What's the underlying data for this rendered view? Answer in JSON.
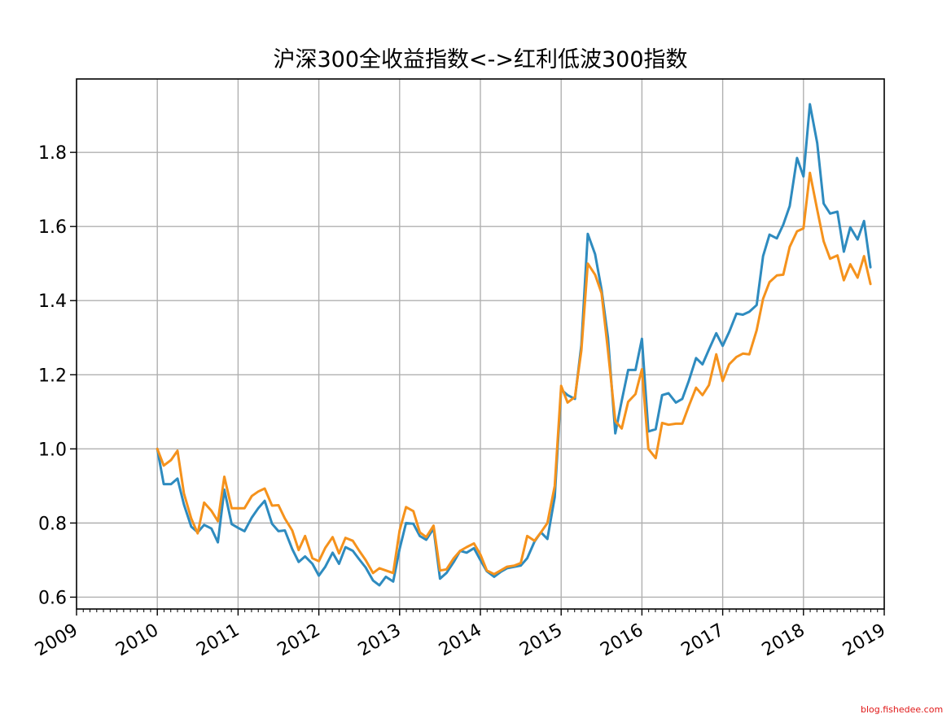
{
  "chart_data": {
    "type": "line",
    "title": "沪深300全收益指数<->红利低波300指数",
    "xlabel": "",
    "ylabel": "",
    "xlim": [
      2009.0,
      2019.0
    ],
    "ylim": [
      0.568,
      1.998
    ],
    "x_ticks": [
      2009,
      2010,
      2011,
      2012,
      2013,
      2014,
      2015,
      2016,
      2017,
      2018,
      2019
    ],
    "x_tick_labels": [
      "2009",
      "2010",
      "2011",
      "2012",
      "2013",
      "2014",
      "2015",
      "2016",
      "2017",
      "2018",
      "2019"
    ],
    "y_ticks": [
      0.6,
      0.8,
      1.0,
      1.2,
      1.4,
      1.6,
      1.8
    ],
    "y_tick_labels": [
      "0.6",
      "0.8",
      "1.0",
      "1.2",
      "1.4",
      "1.6",
      "1.8"
    ],
    "grid": true,
    "legend": "none",
    "series": [
      {
        "color": "#2e8bbf",
        "x": [
          2010.0,
          2010.08,
          2010.17,
          2010.25,
          2010.33,
          2010.42,
          2010.5,
          2010.58,
          2010.67,
          2010.75,
          2010.83,
          2010.92,
          2011.0,
          2011.08,
          2011.17,
          2011.25,
          2011.33,
          2011.42,
          2011.5,
          2011.58,
          2011.67,
          2011.75,
          2011.83,
          2011.92,
          2012.0,
          2012.08,
          2012.17,
          2012.25,
          2012.33,
          2012.42,
          2012.5,
          2012.58,
          2012.67,
          2012.75,
          2012.83,
          2012.92,
          2013.0,
          2013.08,
          2013.17,
          2013.25,
          2013.33,
          2013.42,
          2013.5,
          2013.58,
          2013.67,
          2013.75,
          2013.83,
          2013.92,
          2014.0,
          2014.08,
          2014.17,
          2014.25,
          2014.33,
          2014.42,
          2014.5,
          2014.58,
          2014.67,
          2014.75,
          2014.83,
          2014.92,
          2015.0,
          2015.08,
          2015.17,
          2015.25,
          2015.33,
          2015.42,
          2015.5,
          2015.58,
          2015.67,
          2015.75,
          2015.83,
          2015.92,
          2016.0,
          2016.08,
          2016.17,
          2016.25,
          2016.33,
          2016.42,
          2016.5,
          2016.58,
          2016.67,
          2016.75,
          2016.83,
          2016.92,
          2017.0,
          2017.08,
          2017.17,
          2017.25,
          2017.33,
          2017.42,
          2017.5,
          2017.58,
          2017.67,
          2017.75,
          2017.83,
          2017.92,
          2018.0,
          2018.08,
          2018.17,
          2018.25,
          2018.33,
          2018.42,
          2018.5,
          2018.58,
          2018.67,
          2018.75,
          2018.83
        ],
        "values": [
          1.0,
          0.905,
          0.905,
          0.92,
          0.85,
          0.79,
          0.775,
          0.795,
          0.785,
          0.748,
          0.89,
          0.797,
          0.787,
          0.778,
          0.815,
          0.84,
          0.86,
          0.798,
          0.778,
          0.78,
          0.73,
          0.695,
          0.71,
          0.69,
          0.658,
          0.682,
          0.72,
          0.69,
          0.735,
          0.725,
          0.702,
          0.68,
          0.645,
          0.632,
          0.655,
          0.642,
          0.73,
          0.8,
          0.798,
          0.765,
          0.755,
          0.785,
          0.65,
          0.665,
          0.695,
          0.725,
          0.72,
          0.732,
          0.7,
          0.67,
          0.655,
          0.668,
          0.678,
          0.682,
          0.685,
          0.705,
          0.75,
          0.775,
          0.757,
          0.87,
          1.16,
          1.145,
          1.135,
          1.28,
          1.58,
          1.525,
          1.43,
          1.3,
          1.042,
          1.13,
          1.213,
          1.213,
          1.297,
          1.047,
          1.053,
          1.145,
          1.15,
          1.125,
          1.135,
          1.183,
          1.245,
          1.228,
          1.268,
          1.312,
          1.278,
          1.315,
          1.365,
          1.362,
          1.37,
          1.388,
          1.52,
          1.578,
          1.568,
          1.605,
          1.655,
          1.785,
          1.735,
          1.93,
          1.825,
          1.662,
          1.635,
          1.64,
          1.532,
          1.598,
          1.565,
          1.615,
          1.49
        ]
      },
      {
        "color": "#f5921c",
        "x": [
          2010.0,
          2010.08,
          2010.17,
          2010.25,
          2010.33,
          2010.42,
          2010.5,
          2010.58,
          2010.67,
          2010.75,
          2010.83,
          2010.92,
          2011.0,
          2011.08,
          2011.17,
          2011.25,
          2011.33,
          2011.42,
          2011.5,
          2011.58,
          2011.67,
          2011.75,
          2011.83,
          2011.92,
          2012.0,
          2012.08,
          2012.17,
          2012.25,
          2012.33,
          2012.42,
          2012.5,
          2012.58,
          2012.67,
          2012.75,
          2012.83,
          2012.92,
          2013.0,
          2013.08,
          2013.17,
          2013.25,
          2013.33,
          2013.42,
          2013.5,
          2013.58,
          2013.67,
          2013.75,
          2013.83,
          2013.92,
          2014.0,
          2014.08,
          2014.17,
          2014.25,
          2014.33,
          2014.42,
          2014.5,
          2014.58,
          2014.67,
          2014.75,
          2014.83,
          2014.92,
          2015.0,
          2015.08,
          2015.17,
          2015.25,
          2015.33,
          2015.42,
          2015.5,
          2015.58,
          2015.67,
          2015.75,
          2015.83,
          2015.92,
          2016.0,
          2016.08,
          2016.17,
          2016.25,
          2016.33,
          2016.42,
          2016.5,
          2016.58,
          2016.67,
          2016.75,
          2016.83,
          2016.92,
          2017.0,
          2017.08,
          2017.17,
          2017.25,
          2017.33,
          2017.42,
          2017.5,
          2017.58,
          2017.67,
          2017.75,
          2017.83,
          2017.92,
          2018.0,
          2018.08,
          2018.17,
          2018.25,
          2018.33,
          2018.42,
          2018.5,
          2018.58,
          2018.67,
          2018.75,
          2018.83
        ],
        "values": [
          1.0,
          0.955,
          0.97,
          0.995,
          0.88,
          0.812,
          0.772,
          0.855,
          0.833,
          0.805,
          0.925,
          0.84,
          0.84,
          0.84,
          0.873,
          0.885,
          0.893,
          0.847,
          0.848,
          0.812,
          0.78,
          0.727,
          0.765,
          0.705,
          0.697,
          0.733,
          0.762,
          0.718,
          0.76,
          0.752,
          0.725,
          0.7,
          0.665,
          0.678,
          0.672,
          0.665,
          0.78,
          0.843,
          0.832,
          0.775,
          0.762,
          0.793,
          0.672,
          0.675,
          0.705,
          0.725,
          0.735,
          0.745,
          0.715,
          0.672,
          0.662,
          0.672,
          0.682,
          0.685,
          0.692,
          0.765,
          0.752,
          0.775,
          0.8,
          0.9,
          1.17,
          1.125,
          1.14,
          1.265,
          1.5,
          1.47,
          1.42,
          1.265,
          1.075,
          1.055,
          1.127,
          1.148,
          1.215,
          1.0,
          0.975,
          1.07,
          1.065,
          1.068,
          1.068,
          1.115,
          1.165,
          1.145,
          1.172,
          1.255,
          1.183,
          1.228,
          1.248,
          1.257,
          1.255,
          1.32,
          1.405,
          1.45,
          1.468,
          1.47,
          1.545,
          1.587,
          1.595,
          1.745,
          1.645,
          1.56,
          1.513,
          1.522,
          1.455,
          1.498,
          1.462,
          1.52,
          1.445
        ]
      }
    ]
  },
  "watermark": "blog.fishedee.com"
}
